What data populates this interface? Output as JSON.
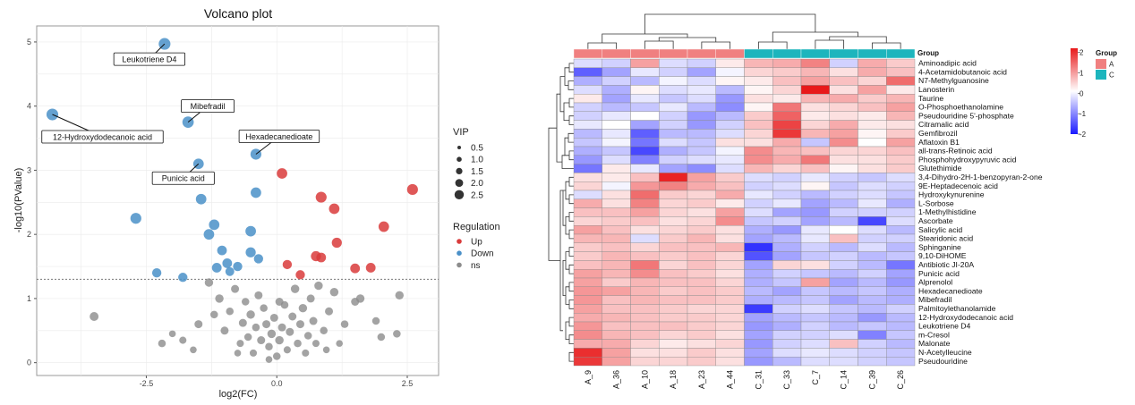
{
  "chart_data": [
    {
      "type": "scatter",
      "title": "Volcano plot",
      "xlabel": "log2(FC)",
      "ylabel": "-log10(PValue)",
      "xlim": [
        -4.6,
        3.1
      ],
      "ylim": [
        -0.2,
        5.25
      ],
      "x_ticks": [
        -2.5,
        0.0,
        2.5
      ],
      "x_tick_labels": [
        "-2.5",
        "0.0",
        "2.5"
      ],
      "y_ticks": [
        0,
        1,
        2,
        3,
        4,
        5
      ],
      "y_tick_labels": [
        "0",
        "1",
        "2",
        "3",
        "4",
        "5"
      ],
      "threshold_y": 1.3,
      "legend_vip": {
        "title": "VIP",
        "items": [
          {
            "label": "0.5",
            "value": 0.5
          },
          {
            "label": "1.0",
            "value": 1.0
          },
          {
            "label": "1.5",
            "value": 1.5
          },
          {
            "label": "2.0",
            "value": 2.0
          },
          {
            "label": "2.5",
            "value": 2.5
          }
        ]
      },
      "legend_regulation": {
        "title": "Regulation",
        "items": [
          {
            "label": "Up",
            "color": "#D93B3B"
          },
          {
            "label": "Down",
            "color": "#4A90C8"
          },
          {
            "label": "ns",
            "color": "#8C8C8C"
          }
        ]
      },
      "colors": {
        "up": "#D93B3B",
        "down": "#4A90C8",
        "ns": "#8C8C8C",
        "panel_border": "#999999",
        "grid": "#EBEBEB"
      },
      "points_down": [
        {
          "x": -4.3,
          "y": 3.87,
          "vip": 2.2
        },
        {
          "x": -2.15,
          "y": 4.97,
          "vip": 2.2
        },
        {
          "x": -1.7,
          "y": 3.75,
          "vip": 2.1
        },
        {
          "x": -1.5,
          "y": 3.1,
          "vip": 1.9
        },
        {
          "x": -1.45,
          "y": 2.55,
          "vip": 1.9
        },
        {
          "x": -2.7,
          "y": 2.25,
          "vip": 2.0
        },
        {
          "x": -1.3,
          "y": 2.0,
          "vip": 1.9
        },
        {
          "x": -1.2,
          "y": 2.15,
          "vip": 1.9
        },
        {
          "x": -1.05,
          "y": 1.75,
          "vip": 1.7
        },
        {
          "x": -0.5,
          "y": 2.05,
          "vip": 1.9
        },
        {
          "x": -0.4,
          "y": 3.25,
          "vip": 2.0
        },
        {
          "x": -0.4,
          "y": 2.65,
          "vip": 1.9
        },
        {
          "x": -0.95,
          "y": 1.55,
          "vip": 1.7
        },
        {
          "x": -0.5,
          "y": 1.72,
          "vip": 1.8
        },
        {
          "x": -0.35,
          "y": 1.62,
          "vip": 1.6
        },
        {
          "x": -0.75,
          "y": 1.5,
          "vip": 1.6
        },
        {
          "x": -1.15,
          "y": 1.48,
          "vip": 1.7
        },
        {
          "x": -2.3,
          "y": 1.4,
          "vip": 1.6
        },
        {
          "x": -1.8,
          "y": 1.33,
          "vip": 1.6
        },
        {
          "x": -0.9,
          "y": 1.42,
          "vip": 1.5
        }
      ],
      "points_up": [
        {
          "x": 0.1,
          "y": 2.95,
          "vip": 1.9
        },
        {
          "x": 0.85,
          "y": 2.58,
          "vip": 2.0
        },
        {
          "x": 1.1,
          "y": 2.4,
          "vip": 1.9
        },
        {
          "x": 2.6,
          "y": 2.7,
          "vip": 2.0
        },
        {
          "x": 2.05,
          "y": 2.12,
          "vip": 1.9
        },
        {
          "x": 1.15,
          "y": 1.87,
          "vip": 1.8
        },
        {
          "x": 0.75,
          "y": 1.66,
          "vip": 1.8
        },
        {
          "x": 0.85,
          "y": 1.64,
          "vip": 1.7
        },
        {
          "x": 0.2,
          "y": 1.53,
          "vip": 1.6
        },
        {
          "x": 0.45,
          "y": 1.37,
          "vip": 1.6
        },
        {
          "x": 1.5,
          "y": 1.47,
          "vip": 1.7
        },
        {
          "x": 1.8,
          "y": 1.48,
          "vip": 1.7
        }
      ],
      "points_ns": [
        {
          "x": -3.5,
          "y": 0.72,
          "vip": 1.5
        },
        {
          "x": -2.2,
          "y": 0.3,
          "vip": 1.2
        },
        {
          "x": -2.0,
          "y": 0.45,
          "vip": 1.0
        },
        {
          "x": -1.8,
          "y": 0.35,
          "vip": 1.1
        },
        {
          "x": -1.5,
          "y": 0.6,
          "vip": 1.3
        },
        {
          "x": -1.6,
          "y": 0.2,
          "vip": 1.0
        },
        {
          "x": -1.3,
          "y": 1.25,
          "vip": 1.4
        },
        {
          "x": -1.1,
          "y": 1.0,
          "vip": 1.4
        },
        {
          "x": -1.0,
          "y": 0.5,
          "vip": 1.3
        },
        {
          "x": -0.9,
          "y": 0.8,
          "vip": 1.2
        },
        {
          "x": -0.8,
          "y": 1.15,
          "vip": 1.3
        },
        {
          "x": -0.7,
          "y": 0.3,
          "vip": 1.1
        },
        {
          "x": -0.65,
          "y": 0.62,
          "vip": 1.3
        },
        {
          "x": -0.6,
          "y": 0.95,
          "vip": 1.2
        },
        {
          "x": -0.55,
          "y": 0.4,
          "vip": 1.2
        },
        {
          "x": -0.5,
          "y": 0.75,
          "vip": 1.4
        },
        {
          "x": -0.45,
          "y": 0.15,
          "vip": 1.1
        },
        {
          "x": -0.4,
          "y": 0.55,
          "vip": 1.2
        },
        {
          "x": -0.35,
          "y": 1.05,
          "vip": 1.3
        },
        {
          "x": -0.3,
          "y": 0.35,
          "vip": 1.3
        },
        {
          "x": -0.25,
          "y": 0.85,
          "vip": 1.2
        },
        {
          "x": -0.2,
          "y": 0.6,
          "vip": 1.3
        },
        {
          "x": -0.15,
          "y": 0.25,
          "vip": 1.2
        },
        {
          "x": -0.1,
          "y": 0.45,
          "vip": 1.4
        },
        {
          "x": -0.05,
          "y": 0.7,
          "vip": 1.3
        },
        {
          "x": 0.0,
          "y": 0.1,
          "vip": 1.2
        },
        {
          "x": 0.05,
          "y": 0.35,
          "vip": 1.4
        },
        {
          "x": 0.1,
          "y": 0.55,
          "vip": 1.3
        },
        {
          "x": 0.15,
          "y": 0.9,
          "vip": 1.2
        },
        {
          "x": 0.2,
          "y": 0.2,
          "vip": 1.1
        },
        {
          "x": 0.25,
          "y": 0.48,
          "vip": 1.3
        },
        {
          "x": 0.3,
          "y": 0.72,
          "vip": 1.3
        },
        {
          "x": 0.35,
          "y": 1.15,
          "vip": 1.4
        },
        {
          "x": 0.4,
          "y": 0.3,
          "vip": 1.2
        },
        {
          "x": 0.45,
          "y": 0.6,
          "vip": 1.3
        },
        {
          "x": 0.5,
          "y": 0.85,
          "vip": 1.4
        },
        {
          "x": 0.55,
          "y": 0.15,
          "vip": 1.1
        },
        {
          "x": 0.6,
          "y": 0.42,
          "vip": 1.2
        },
        {
          "x": 0.65,
          "y": 1.0,
          "vip": 1.3
        },
        {
          "x": 0.7,
          "y": 0.65,
          "vip": 1.3
        },
        {
          "x": 0.8,
          "y": 1.2,
          "vip": 1.4
        },
        {
          "x": 0.9,
          "y": 0.5,
          "vip": 1.2
        },
        {
          "x": 1.0,
          "y": 0.8,
          "vip": 1.3
        },
        {
          "x": 1.1,
          "y": 1.1,
          "vip": 1.4
        },
        {
          "x": 1.2,
          "y": 0.3,
          "vip": 1.0
        },
        {
          "x": 1.3,
          "y": 0.6,
          "vip": 1.2
        },
        {
          "x": 1.5,
          "y": 0.95,
          "vip": 1.3
        },
        {
          "x": 1.6,
          "y": 1.0,
          "vip": 1.4
        },
        {
          "x": 1.9,
          "y": 0.65,
          "vip": 1.2
        },
        {
          "x": 2.0,
          "y": 0.4,
          "vip": 1.2
        },
        {
          "x": 2.35,
          "y": 1.05,
          "vip": 1.4
        },
        {
          "x": 2.3,
          "y": 0.45,
          "vip": 1.2
        },
        {
          "x": -0.15,
          "y": 0.05,
          "vip": 1.0
        },
        {
          "x": 0.05,
          "y": 0.95,
          "vip": 1.3
        },
        {
          "x": -0.75,
          "y": 0.15,
          "vip": 1.0
        },
        {
          "x": 0.95,
          "y": 0.2,
          "vip": 1.0
        },
        {
          "x": -1.2,
          "y": 0.75,
          "vip": 1.2
        },
        {
          "x": 0.75,
          "y": 0.3,
          "vip": 1.1
        }
      ],
      "annotations": [
        {
          "label": "Leukotriene D4",
          "x": -2.15,
          "y": 4.97
        },
        {
          "label": "12-Hydroxydodecanoic acid",
          "x": -4.3,
          "y": 3.87
        },
        {
          "label": "Mibefradil",
          "x": -1.7,
          "y": 3.75
        },
        {
          "label": "Hexadecanedioate",
          "x": -0.4,
          "y": 3.25
        },
        {
          "label": "Punicic acid",
          "x": -1.5,
          "y": 3.1
        }
      ]
    },
    {
      "type": "heatmap",
      "columns": [
        "A_9",
        "A_36",
        "A_10",
        "A_18",
        "A_23",
        "A_44",
        "C_31",
        "C_33",
        "C_7",
        "C_14",
        "C_39",
        "C_26"
      ],
      "column_groups": [
        "A",
        "A",
        "A",
        "A",
        "A",
        "A",
        "C",
        "C",
        "C",
        "C",
        "C",
        "C"
      ],
      "group_annotation_label": "Group",
      "rows": [
        "Aminoadipic acid",
        "4-Acetamidobutanoic acid",
        "N7-Methylguanosine",
        "Lanosterin",
        "Taurine",
        "O-Phosphoethanolamine",
        "Pseudouridine 5'-phosphate",
        "Citramalic acid",
        "Gemfibrozil",
        "Aflatoxin B1",
        "all-trans-Retinoic acid",
        "Phosphohydroxypyruvic acid",
        "Glutethimide",
        "3,4-Dihydro-2H-1-benzopyran-2-one",
        "9E-Heptadecenoic acid",
        "Hydroxykynurenine",
        "L-Sorbose",
        "1-Methylhistidine",
        "Ascorbate",
        "Salicylic acid",
        "Stearidonic acid",
        "Sphinganine",
        "9,10-DiHOME",
        "Antibiotic JI-20A",
        "Punicic acid",
        "Alprenolol",
        "Hexadecanedioate",
        "Mibefradil",
        "Palmitoylethanolamide",
        "12-Hydroxydodecanoic acid",
        "Leukotriene D4",
        "m-Cresol",
        "Malonate",
        "N-Acetylleucine",
        "Pseudouridine"
      ],
      "values": [
        [
          -0.3,
          -0.4,
          0.9,
          -0.3,
          -0.4,
          0.2,
          0.7,
          0.8,
          1.2,
          -0.4,
          0.8,
          0.5
        ],
        [
          -1.4,
          -0.8,
          -0.2,
          -0.4,
          -0.8,
          -0.1,
          0.4,
          0.5,
          0.7,
          0.3,
          0.8,
          0.6
        ],
        [
          -0.7,
          -0.4,
          -0.6,
          -0.1,
          -0.3,
          0.1,
          0.2,
          0.6,
          0.9,
          0.6,
          0.4,
          1.4
        ],
        [
          -0.3,
          -0.7,
          0.1,
          -0.3,
          -0.2,
          -0.6,
          0.1,
          0.4,
          2.2,
          0.3,
          0.9,
          0.2
        ],
        [
          0.2,
          -0.8,
          -0.2,
          -0.5,
          -0.3,
          -0.9,
          0.3,
          0.2,
          0.7,
          0.8,
          0.5,
          0.7
        ],
        [
          -0.4,
          -0.6,
          -0.5,
          -0.2,
          -0.6,
          -1.0,
          0.1,
          1.3,
          0.3,
          0.4,
          0.6,
          0.9
        ],
        [
          -0.4,
          -0.2,
          0.0,
          -0.4,
          -0.9,
          -0.6,
          0.5,
          1.5,
          0.2,
          0.3,
          0.2,
          0.7
        ],
        [
          -0.2,
          0.0,
          -0.8,
          -0.4,
          -0.9,
          -0.4,
          0.6,
          1.8,
          0.4,
          0.8,
          0.2,
          0.3
        ],
        [
          -0.6,
          -0.2,
          -1.4,
          -0.6,
          -0.6,
          -0.3,
          0.4,
          1.9,
          0.7,
          0.9,
          0.1,
          0.5
        ],
        [
          -0.5,
          -0.1,
          -1.2,
          -0.3,
          -0.5,
          0.3,
          0.3,
          0.8,
          -0.5,
          1.1,
          0.0,
          0.9
        ],
        [
          -0.7,
          -0.5,
          -1.6,
          -0.7,
          -0.5,
          -0.1,
          1.1,
          0.7,
          0.6,
          0.4,
          0.4,
          0.6
        ],
        [
          -0.9,
          -0.3,
          -1.1,
          -0.4,
          -0.3,
          -0.2,
          1.1,
          0.8,
          1.3,
          0.3,
          0.3,
          0.5
        ],
        [
          -1.2,
          0.2,
          -0.2,
          -0.8,
          -1.0,
          -0.3,
          0.7,
          0.4,
          0.6,
          0.1,
          0.3,
          0.5
        ],
        [
          0.3,
          0.2,
          0.6,
          2.1,
          0.9,
          0.5,
          -0.3,
          -0.4,
          -0.2,
          -0.4,
          -0.5,
          -0.3
        ],
        [
          0.4,
          -0.1,
          1.0,
          1.2,
          0.8,
          0.6,
          -0.4,
          -0.3,
          0.1,
          -0.5,
          -0.3,
          -0.4
        ],
        [
          -0.3,
          0.3,
          1.4,
          0.5,
          0.4,
          0.8,
          -0.2,
          -0.4,
          -0.6,
          -0.4,
          -0.3,
          -0.5
        ],
        [
          0.8,
          0.3,
          1.2,
          0.4,
          0.5,
          0.2,
          -0.4,
          -0.2,
          -0.8,
          -0.6,
          -0.2,
          -0.7
        ],
        [
          0.6,
          0.6,
          0.9,
          0.4,
          0.3,
          0.9,
          -0.3,
          -0.8,
          -0.9,
          -0.4,
          -0.4,
          -0.4
        ],
        [
          0.4,
          0.5,
          0.6,
          0.3,
          0.4,
          1.1,
          -0.5,
          -0.4,
          -0.8,
          -0.6,
          -1.6,
          -0.3
        ],
        [
          0.9,
          0.6,
          0.3,
          0.4,
          0.5,
          0.3,
          -0.7,
          -0.9,
          -0.2,
          0.0,
          -0.3,
          -0.6
        ],
        [
          0.7,
          0.7,
          -0.3,
          0.5,
          0.7,
          0.3,
          -0.8,
          -0.6,
          -0.2,
          0.6,
          -0.4,
          -0.4
        ],
        [
          0.5,
          0.6,
          0.4,
          0.6,
          0.6,
          0.7,
          -1.8,
          -0.7,
          -0.4,
          -0.6,
          -0.3,
          -0.6
        ],
        [
          0.5,
          0.7,
          0.6,
          0.5,
          0.6,
          0.4,
          -1.5,
          -0.8,
          -0.5,
          -0.4,
          -0.6,
          -0.5
        ],
        [
          0.6,
          0.7,
          1.3,
          0.4,
          0.6,
          0.4,
          -0.8,
          0.4,
          0.3,
          -0.4,
          -0.6,
          -1.2
        ],
        [
          0.9,
          0.7,
          1.1,
          0.6,
          0.5,
          0.3,
          -0.7,
          -0.4,
          -0.5,
          -0.6,
          -0.4,
          -0.8
        ],
        [
          0.9,
          0.5,
          0.7,
          0.6,
          0.6,
          0.4,
          -0.7,
          -0.5,
          0.9,
          -0.8,
          -0.6,
          -0.9
        ],
        [
          1.0,
          0.9,
          0.7,
          0.5,
          0.6,
          0.5,
          -0.6,
          -0.8,
          -0.5,
          -0.6,
          -0.5,
          -0.7
        ],
        [
          1.0,
          0.6,
          0.7,
          0.6,
          0.6,
          0.5,
          -0.7,
          -0.6,
          -0.5,
          -0.8,
          -0.6,
          -0.7
        ],
        [
          0.9,
          0.6,
          0.6,
          0.5,
          0.4,
          0.4,
          -1.7,
          -0.4,
          -0.3,
          -0.5,
          -0.6,
          -0.4
        ],
        [
          0.8,
          0.7,
          0.6,
          0.5,
          0.5,
          0.4,
          -0.8,
          -0.6,
          -0.5,
          -0.6,
          -0.9,
          -0.6
        ],
        [
          1.0,
          0.6,
          0.6,
          0.6,
          0.5,
          0.4,
          -0.9,
          -0.7,
          -0.4,
          -0.6,
          -0.5,
          -0.6
        ],
        [
          1.1,
          0.7,
          0.6,
          0.4,
          0.5,
          0.3,
          -0.8,
          -0.4,
          -0.4,
          -0.3,
          -1.1,
          -0.5
        ],
        [
          0.8,
          0.8,
          0.4,
          0.2,
          0.3,
          0.4,
          -0.9,
          -0.4,
          -0.3,
          0.6,
          -0.4,
          -0.6
        ],
        [
          2.0,
          0.9,
          0.3,
          0.3,
          0.5,
          0.3,
          -0.8,
          -0.3,
          -0.2,
          -0.3,
          -0.4,
          -0.5
        ],
        [
          1.9,
          0.9,
          0.4,
          0.4,
          0.5,
          0.3,
          -0.9,
          -0.6,
          -0.3,
          -0.3,
          -0.4,
          -0.5
        ]
      ],
      "color_scale": {
        "min": -2,
        "mid": 0,
        "max": 2.2,
        "low_color": "#1A1AFF",
        "mid_color": "#FFFFFF",
        "high_color": "#E8191A"
      },
      "scale_ticks": [
        {
          "label": "2",
          "value": 2
        },
        {
          "label": "1",
          "value": 1
        },
        {
          "label": "0",
          "value": 0
        },
        {
          "label": "-1",
          "value": -1
        },
        {
          "label": "-2",
          "value": -2
        }
      ],
      "group_legend": {
        "title": "Group",
        "items": [
          {
            "label": "A",
            "color": "#F08080"
          },
          {
            "label": "C",
            "color": "#1DB5BD"
          }
        ]
      }
    }
  ]
}
